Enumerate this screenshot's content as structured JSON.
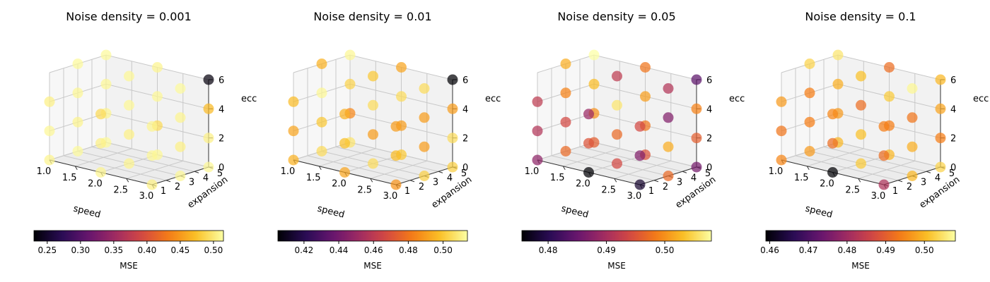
{
  "chart_data": [
    {
      "type": "scatter",
      "title": "Noise density = 0.001",
      "xlabel": "speed",
      "ylabel": "expansion",
      "zlabel": "ecc",
      "xticks": [
        "1.0",
        "1.5",
        "2.0",
        "2.5",
        "3.0"
      ],
      "yticks": [
        "1",
        "2",
        "3",
        "4",
        "5"
      ],
      "zticks": [
        "0",
        "2",
        "4",
        "6"
      ],
      "xlim": [
        1.0,
        3.0
      ],
      "ylim": [
        1,
        5
      ],
      "zlim": [
        0,
        6
      ],
      "colorbar": {
        "label": "MSE",
        "colormap": "inferno",
        "range": [
          0.23,
          0.515
        ],
        "ticks": [
          "0.25",
          "0.30",
          "0.35",
          "0.40",
          "0.45",
          "0.50"
        ]
      },
      "points": [
        {
          "speed": 1.0,
          "expansion": 1,
          "ecc": 0,
          "mse": 0.508
        },
        {
          "speed": 1.0,
          "expansion": 1,
          "ecc": 2,
          "mse": 0.51
        },
        {
          "speed": 1.0,
          "expansion": 1,
          "ecc": 4,
          "mse": 0.505
        },
        {
          "speed": 1.0,
          "expansion": 3,
          "ecc": 0,
          "mse": 0.512
        },
        {
          "speed": 1.0,
          "expansion": 3,
          "ecc": 2,
          "mse": 0.508
        },
        {
          "speed": 1.0,
          "expansion": 3,
          "ecc": 4,
          "mse": 0.51
        },
        {
          "speed": 1.0,
          "expansion": 3,
          "ecc": 6,
          "mse": 0.512
        },
        {
          "speed": 1.0,
          "expansion": 5,
          "ecc": 0,
          "mse": 0.512
        },
        {
          "speed": 1.0,
          "expansion": 5,
          "ecc": 2,
          "mse": 0.508
        },
        {
          "speed": 1.0,
          "expansion": 5,
          "ecc": 4,
          "mse": 0.51
        },
        {
          "speed": 1.0,
          "expansion": 5,
          "ecc": 6,
          "mse": 0.512
        },
        {
          "speed": 2.0,
          "expansion": 1,
          "ecc": 0,
          "mse": 0.508
        },
        {
          "speed": 2.0,
          "expansion": 1,
          "ecc": 2,
          "mse": 0.505
        },
        {
          "speed": 2.0,
          "expansion": 1,
          "ecc": 4,
          "mse": 0.49
        },
        {
          "speed": 2.0,
          "expansion": 3,
          "ecc": 0,
          "mse": 0.508
        },
        {
          "speed": 2.0,
          "expansion": 3,
          "ecc": 2,
          "mse": 0.505
        },
        {
          "speed": 2.0,
          "expansion": 3,
          "ecc": 4,
          "mse": 0.51
        },
        {
          "speed": 2.0,
          "expansion": 3,
          "ecc": 6,
          "mse": 0.51
        },
        {
          "speed": 2.0,
          "expansion": 5,
          "ecc": 0,
          "mse": 0.51
        },
        {
          "speed": 2.0,
          "expansion": 5,
          "ecc": 2,
          "mse": 0.49
        },
        {
          "speed": 2.0,
          "expansion": 5,
          "ecc": 4,
          "mse": 0.51
        },
        {
          "speed": 2.0,
          "expansion": 5,
          "ecc": 6,
          "mse": 0.508
        },
        {
          "speed": 3.0,
          "expansion": 1,
          "ecc": 0,
          "mse": 0.505
        },
        {
          "speed": 3.0,
          "expansion": 1,
          "ecc": 2,
          "mse": 0.51
        },
        {
          "speed": 3.0,
          "expansion": 1,
          "ecc": 4,
          "mse": 0.508
        },
        {
          "speed": 3.0,
          "expansion": 3,
          "ecc": 0,
          "mse": 0.51
        },
        {
          "speed": 3.0,
          "expansion": 3,
          "ecc": 2,
          "mse": 0.505
        },
        {
          "speed": 3.0,
          "expansion": 3,
          "ecc": 4,
          "mse": 0.508
        },
        {
          "speed": 3.0,
          "expansion": 3,
          "ecc": 6,
          "mse": 0.512
        },
        {
          "speed": 3.0,
          "expansion": 5,
          "ecc": 0,
          "mse": 0.51
        },
        {
          "speed": 3.0,
          "expansion": 5,
          "ecc": 2,
          "mse": 0.505
        },
        {
          "speed": 3.0,
          "expansion": 5,
          "ecc": 4,
          "mse": 0.47
        },
        {
          "speed": 3.0,
          "expansion": 5,
          "ecc": 6,
          "mse": 0.235
        }
      ]
    },
    {
      "type": "scatter",
      "title": "Noise density = 0.01",
      "xlabel": "speed",
      "ylabel": "expansion",
      "zlabel": "ecc",
      "xticks": [
        "1.0",
        "1.5",
        "2.0",
        "2.5",
        "3.0"
      ],
      "yticks": [
        "1",
        "2",
        "3",
        "4",
        "5"
      ],
      "zticks": [
        "0",
        "2",
        "4",
        "6"
      ],
      "xlim": [
        1.0,
        3.0
      ],
      "ylim": [
        1,
        5
      ],
      "zlim": [
        0,
        6
      ],
      "colorbar": {
        "label": "MSE",
        "colormap": "inferno",
        "range": [
          0.405,
          0.514
        ],
        "ticks": [
          "0.42",
          "0.44",
          "0.46",
          "0.48",
          "0.50"
        ]
      },
      "points": [
        {
          "speed": 1.0,
          "expansion": 1,
          "ecc": 0,
          "mse": 0.495
        },
        {
          "speed": 1.0,
          "expansion": 1,
          "ecc": 2,
          "mse": 0.492
        },
        {
          "speed": 1.0,
          "expansion": 1,
          "ecc": 4,
          "mse": 0.497
        },
        {
          "speed": 1.0,
          "expansion": 3,
          "ecc": 0,
          "mse": 0.505
        },
        {
          "speed": 1.0,
          "expansion": 3,
          "ecc": 2,
          "mse": 0.5
        },
        {
          "speed": 1.0,
          "expansion": 3,
          "ecc": 4,
          "mse": 0.512
        },
        {
          "speed": 1.0,
          "expansion": 3,
          "ecc": 6,
          "mse": 0.495
        },
        {
          "speed": 1.0,
          "expansion": 5,
          "ecc": 0,
          "mse": 0.507
        },
        {
          "speed": 1.0,
          "expansion": 5,
          "ecc": 2,
          "mse": 0.485
        },
        {
          "speed": 1.0,
          "expansion": 5,
          "ecc": 4,
          "mse": 0.503
        },
        {
          "speed": 1.0,
          "expansion": 5,
          "ecc": 6,
          "mse": 0.512
        },
        {
          "speed": 2.0,
          "expansion": 1,
          "ecc": 0,
          "mse": 0.492
        },
        {
          "speed": 2.0,
          "expansion": 1,
          "ecc": 2,
          "mse": 0.498
        },
        {
          "speed": 2.0,
          "expansion": 1,
          "ecc": 4,
          "mse": 0.495
        },
        {
          "speed": 2.0,
          "expansion": 3,
          "ecc": 0,
          "mse": 0.505
        },
        {
          "speed": 2.0,
          "expansion": 3,
          "ecc": 2,
          "mse": 0.49
        },
        {
          "speed": 2.0,
          "expansion": 3,
          "ecc": 4,
          "mse": 0.505
        },
        {
          "speed": 2.0,
          "expansion": 3,
          "ecc": 6,
          "mse": 0.5
        },
        {
          "speed": 2.0,
          "expansion": 5,
          "ecc": 0,
          "mse": 0.5
        },
        {
          "speed": 2.0,
          "expansion": 5,
          "ecc": 2,
          "mse": 0.49
        },
        {
          "speed": 2.0,
          "expansion": 5,
          "ecc": 4,
          "mse": 0.505
        },
        {
          "speed": 2.0,
          "expansion": 5,
          "ecc": 6,
          "mse": 0.492
        },
        {
          "speed": 3.0,
          "expansion": 1,
          "ecc": 0,
          "mse": 0.488
        },
        {
          "speed": 3.0,
          "expansion": 1,
          "ecc": 2,
          "mse": 0.497
        },
        {
          "speed": 3.0,
          "expansion": 1,
          "ecc": 4,
          "mse": 0.49
        },
        {
          "speed": 3.0,
          "expansion": 3,
          "ecc": 0,
          "mse": 0.502
        },
        {
          "speed": 3.0,
          "expansion": 3,
          "ecc": 2,
          "mse": 0.49
        },
        {
          "speed": 3.0,
          "expansion": 3,
          "ecc": 4,
          "mse": 0.49
        },
        {
          "speed": 3.0,
          "expansion": 3,
          "ecc": 6,
          "mse": 0.505
        },
        {
          "speed": 3.0,
          "expansion": 5,
          "ecc": 0,
          "mse": 0.502
        },
        {
          "speed": 3.0,
          "expansion": 5,
          "ecc": 2,
          "mse": 0.505
        },
        {
          "speed": 3.0,
          "expansion": 5,
          "ecc": 4,
          "mse": 0.49
        },
        {
          "speed": 3.0,
          "expansion": 5,
          "ecc": 6,
          "mse": 0.405
        }
      ]
    },
    {
      "type": "scatter",
      "title": "Noise density = 0.05",
      "xlabel": "speed",
      "ylabel": "expansion",
      "zlabel": "ecc",
      "xticks": [
        "1.0",
        "1.5",
        "2.0",
        "2.5",
        "3.0"
      ],
      "yticks": [
        "1",
        "2",
        "3",
        "4",
        "5"
      ],
      "zticks": [
        "0",
        "2",
        "4",
        "6"
      ],
      "xlim": [
        1.0,
        3.0
      ],
      "ylim": [
        1,
        5
      ],
      "zlim": [
        0,
        6
      ],
      "colorbar": {
        "label": "MSE",
        "colormap": "inferno",
        "range": [
          0.4755,
          0.508
        ],
        "ticks": [
          "0.48",
          "0.49",
          "0.50"
        ]
      },
      "points": [
        {
          "speed": 1.0,
          "expansion": 1,
          "ecc": 0,
          "mse": 0.488
        },
        {
          "speed": 1.0,
          "expansion": 1,
          "ecc": 2,
          "mse": 0.491
        },
        {
          "speed": 1.0,
          "expansion": 1,
          "ecc": 4,
          "mse": 0.492
        },
        {
          "speed": 1.0,
          "expansion": 3,
          "ecc": 0,
          "mse": 0.497
        },
        {
          "speed": 1.0,
          "expansion": 3,
          "ecc": 2,
          "mse": 0.494
        },
        {
          "speed": 1.0,
          "expansion": 3,
          "ecc": 4,
          "mse": 0.499
        },
        {
          "speed": 1.0,
          "expansion": 3,
          "ecc": 6,
          "mse": 0.502
        },
        {
          "speed": 1.0,
          "expansion": 5,
          "ecc": 0,
          "mse": 0.496
        },
        {
          "speed": 1.0,
          "expansion": 5,
          "ecc": 2,
          "mse": 0.5
        },
        {
          "speed": 1.0,
          "expansion": 5,
          "ecc": 4,
          "mse": 0.503
        },
        {
          "speed": 1.0,
          "expansion": 5,
          "ecc": 6,
          "mse": 0.508
        },
        {
          "speed": 2.0,
          "expansion": 1,
          "ecc": 0,
          "mse": 0.4755
        },
        {
          "speed": 2.0,
          "expansion": 1,
          "ecc": 2,
          "mse": 0.495
        },
        {
          "speed": 2.0,
          "expansion": 1,
          "ecc": 4,
          "mse": 0.489
        },
        {
          "speed": 2.0,
          "expansion": 3,
          "ecc": 0,
          "mse": 0.494
        },
        {
          "speed": 2.0,
          "expansion": 3,
          "ecc": 2,
          "mse": 0.497
        },
        {
          "speed": 2.0,
          "expansion": 3,
          "ecc": 4,
          "mse": 0.506
        },
        {
          "speed": 2.0,
          "expansion": 3,
          "ecc": 6,
          "mse": 0.492
        },
        {
          "speed": 2.0,
          "expansion": 5,
          "ecc": 0,
          "mse": 0.495
        },
        {
          "speed": 2.0,
          "expansion": 5,
          "ecc": 2,
          "mse": 0.498
        },
        {
          "speed": 2.0,
          "expansion": 5,
          "ecc": 4,
          "mse": 0.501
        },
        {
          "speed": 2.0,
          "expansion": 5,
          "ecc": 6,
          "mse": 0.498
        },
        {
          "speed": 3.0,
          "expansion": 1,
          "ecc": 0,
          "mse": 0.478
        },
        {
          "speed": 3.0,
          "expansion": 1,
          "ecc": 2,
          "mse": 0.487
        },
        {
          "speed": 3.0,
          "expansion": 1,
          "ecc": 4,
          "mse": 0.494
        },
        {
          "speed": 3.0,
          "expansion": 3,
          "ecc": 0,
          "mse": 0.497
        },
        {
          "speed": 3.0,
          "expansion": 3,
          "ecc": 2,
          "mse": 0.502
        },
        {
          "speed": 3.0,
          "expansion": 3,
          "ecc": 4,
          "mse": 0.487
        },
        {
          "speed": 3.0,
          "expansion": 3,
          "ecc": 6,
          "mse": 0.491
        },
        {
          "speed": 3.0,
          "expansion": 5,
          "ecc": 0,
          "mse": 0.486
        },
        {
          "speed": 3.0,
          "expansion": 5,
          "ecc": 2,
          "mse": 0.496
        },
        {
          "speed": 3.0,
          "expansion": 5,
          "ecc": 4,
          "mse": 0.499
        },
        {
          "speed": 3.0,
          "expansion": 5,
          "ecc": 6,
          "mse": 0.484
        }
      ]
    },
    {
      "type": "scatter",
      "title": "Noise density = 0.1",
      "xlabel": "speed",
      "ylabel": "expansion",
      "zlabel": "ecc",
      "xticks": [
        "1.0",
        "1.5",
        "2.0",
        "2.5",
        "3.0"
      ],
      "yticks": [
        "1",
        "2",
        "3",
        "4",
        "5"
      ],
      "zticks": [
        "0",
        "2",
        "4",
        "6"
      ],
      "xlim": [
        1.0,
        3.0
      ],
      "ylim": [
        1,
        5
      ],
      "zlim": [
        0,
        6
      ],
      "colorbar": {
        "label": "MSE",
        "colormap": "inferno",
        "range": [
          0.459,
          0.508
        ],
        "ticks": [
          "0.46",
          "0.47",
          "0.48",
          "0.49",
          "0.50"
        ]
      },
      "points": [
        {
          "speed": 1.0,
          "expansion": 1,
          "ecc": 0,
          "mse": 0.495
        },
        {
          "speed": 1.0,
          "expansion": 1,
          "ecc": 2,
          "mse": 0.493
        },
        {
          "speed": 1.0,
          "expansion": 1,
          "ecc": 4,
          "mse": 0.497
        },
        {
          "speed": 1.0,
          "expansion": 3,
          "ecc": 0,
          "mse": 0.497
        },
        {
          "speed": 1.0,
          "expansion": 3,
          "ecc": 2,
          "mse": 0.494
        },
        {
          "speed": 1.0,
          "expansion": 3,
          "ecc": 4,
          "mse": 0.494
        },
        {
          "speed": 1.0,
          "expansion": 3,
          "ecc": 6,
          "mse": 0.503
        },
        {
          "speed": 1.0,
          "expansion": 5,
          "ecc": 0,
          "mse": 0.5
        },
        {
          "speed": 1.0,
          "expansion": 5,
          "ecc": 2,
          "mse": 0.497
        },
        {
          "speed": 1.0,
          "expansion": 5,
          "ecc": 4,
          "mse": 0.499
        },
        {
          "speed": 1.0,
          "expansion": 5,
          "ecc": 6,
          "mse": 0.505
        },
        {
          "speed": 2.0,
          "expansion": 1,
          "ecc": 0,
          "mse": 0.459
        },
        {
          "speed": 2.0,
          "expansion": 1,
          "ecc": 2,
          "mse": 0.492
        },
        {
          "speed": 2.0,
          "expansion": 1,
          "ecc": 4,
          "mse": 0.495
        },
        {
          "speed": 2.0,
          "expansion": 3,
          "ecc": 0,
          "mse": 0.502
        },
        {
          "speed": 2.0,
          "expansion": 3,
          "ecc": 2,
          "mse": 0.501
        },
        {
          "speed": 2.0,
          "expansion": 3,
          "ecc": 4,
          "mse": 0.492
        },
        {
          "speed": 2.0,
          "expansion": 3,
          "ecc": 6,
          "mse": 0.501
        },
        {
          "speed": 2.0,
          "expansion": 5,
          "ecc": 0,
          "mse": 0.5
        },
        {
          "speed": 2.0,
          "expansion": 5,
          "ecc": 2,
          "mse": 0.494
        },
        {
          "speed": 2.0,
          "expansion": 5,
          "ecc": 4,
          "mse": 0.502
        },
        {
          "speed": 2.0,
          "expansion": 5,
          "ecc": 6,
          "mse": 0.492
        },
        {
          "speed": 3.0,
          "expansion": 1,
          "ecc": 0,
          "mse": 0.482
        },
        {
          "speed": 3.0,
          "expansion": 1,
          "ecc": 2,
          "mse": 0.492
        },
        {
          "speed": 3.0,
          "expansion": 1,
          "ecc": 4,
          "mse": 0.494
        },
        {
          "speed": 3.0,
          "expansion": 3,
          "ecc": 0,
          "mse": 0.5
        },
        {
          "speed": 3.0,
          "expansion": 3,
          "ecc": 2,
          "mse": 0.499
        },
        {
          "speed": 3.0,
          "expansion": 3,
          "ecc": 4,
          "mse": 0.493
        },
        {
          "speed": 3.0,
          "expansion": 3,
          "ecc": 6,
          "mse": 0.507
        },
        {
          "speed": 3.0,
          "expansion": 5,
          "ecc": 0,
          "mse": 0.503
        },
        {
          "speed": 3.0,
          "expansion": 5,
          "ecc": 2,
          "mse": 0.494
        },
        {
          "speed": 3.0,
          "expansion": 5,
          "ecc": 4,
          "mse": 0.498
        },
        {
          "speed": 3.0,
          "expansion": 5,
          "ecc": 6,
          "mse": 0.5
        }
      ]
    }
  ]
}
